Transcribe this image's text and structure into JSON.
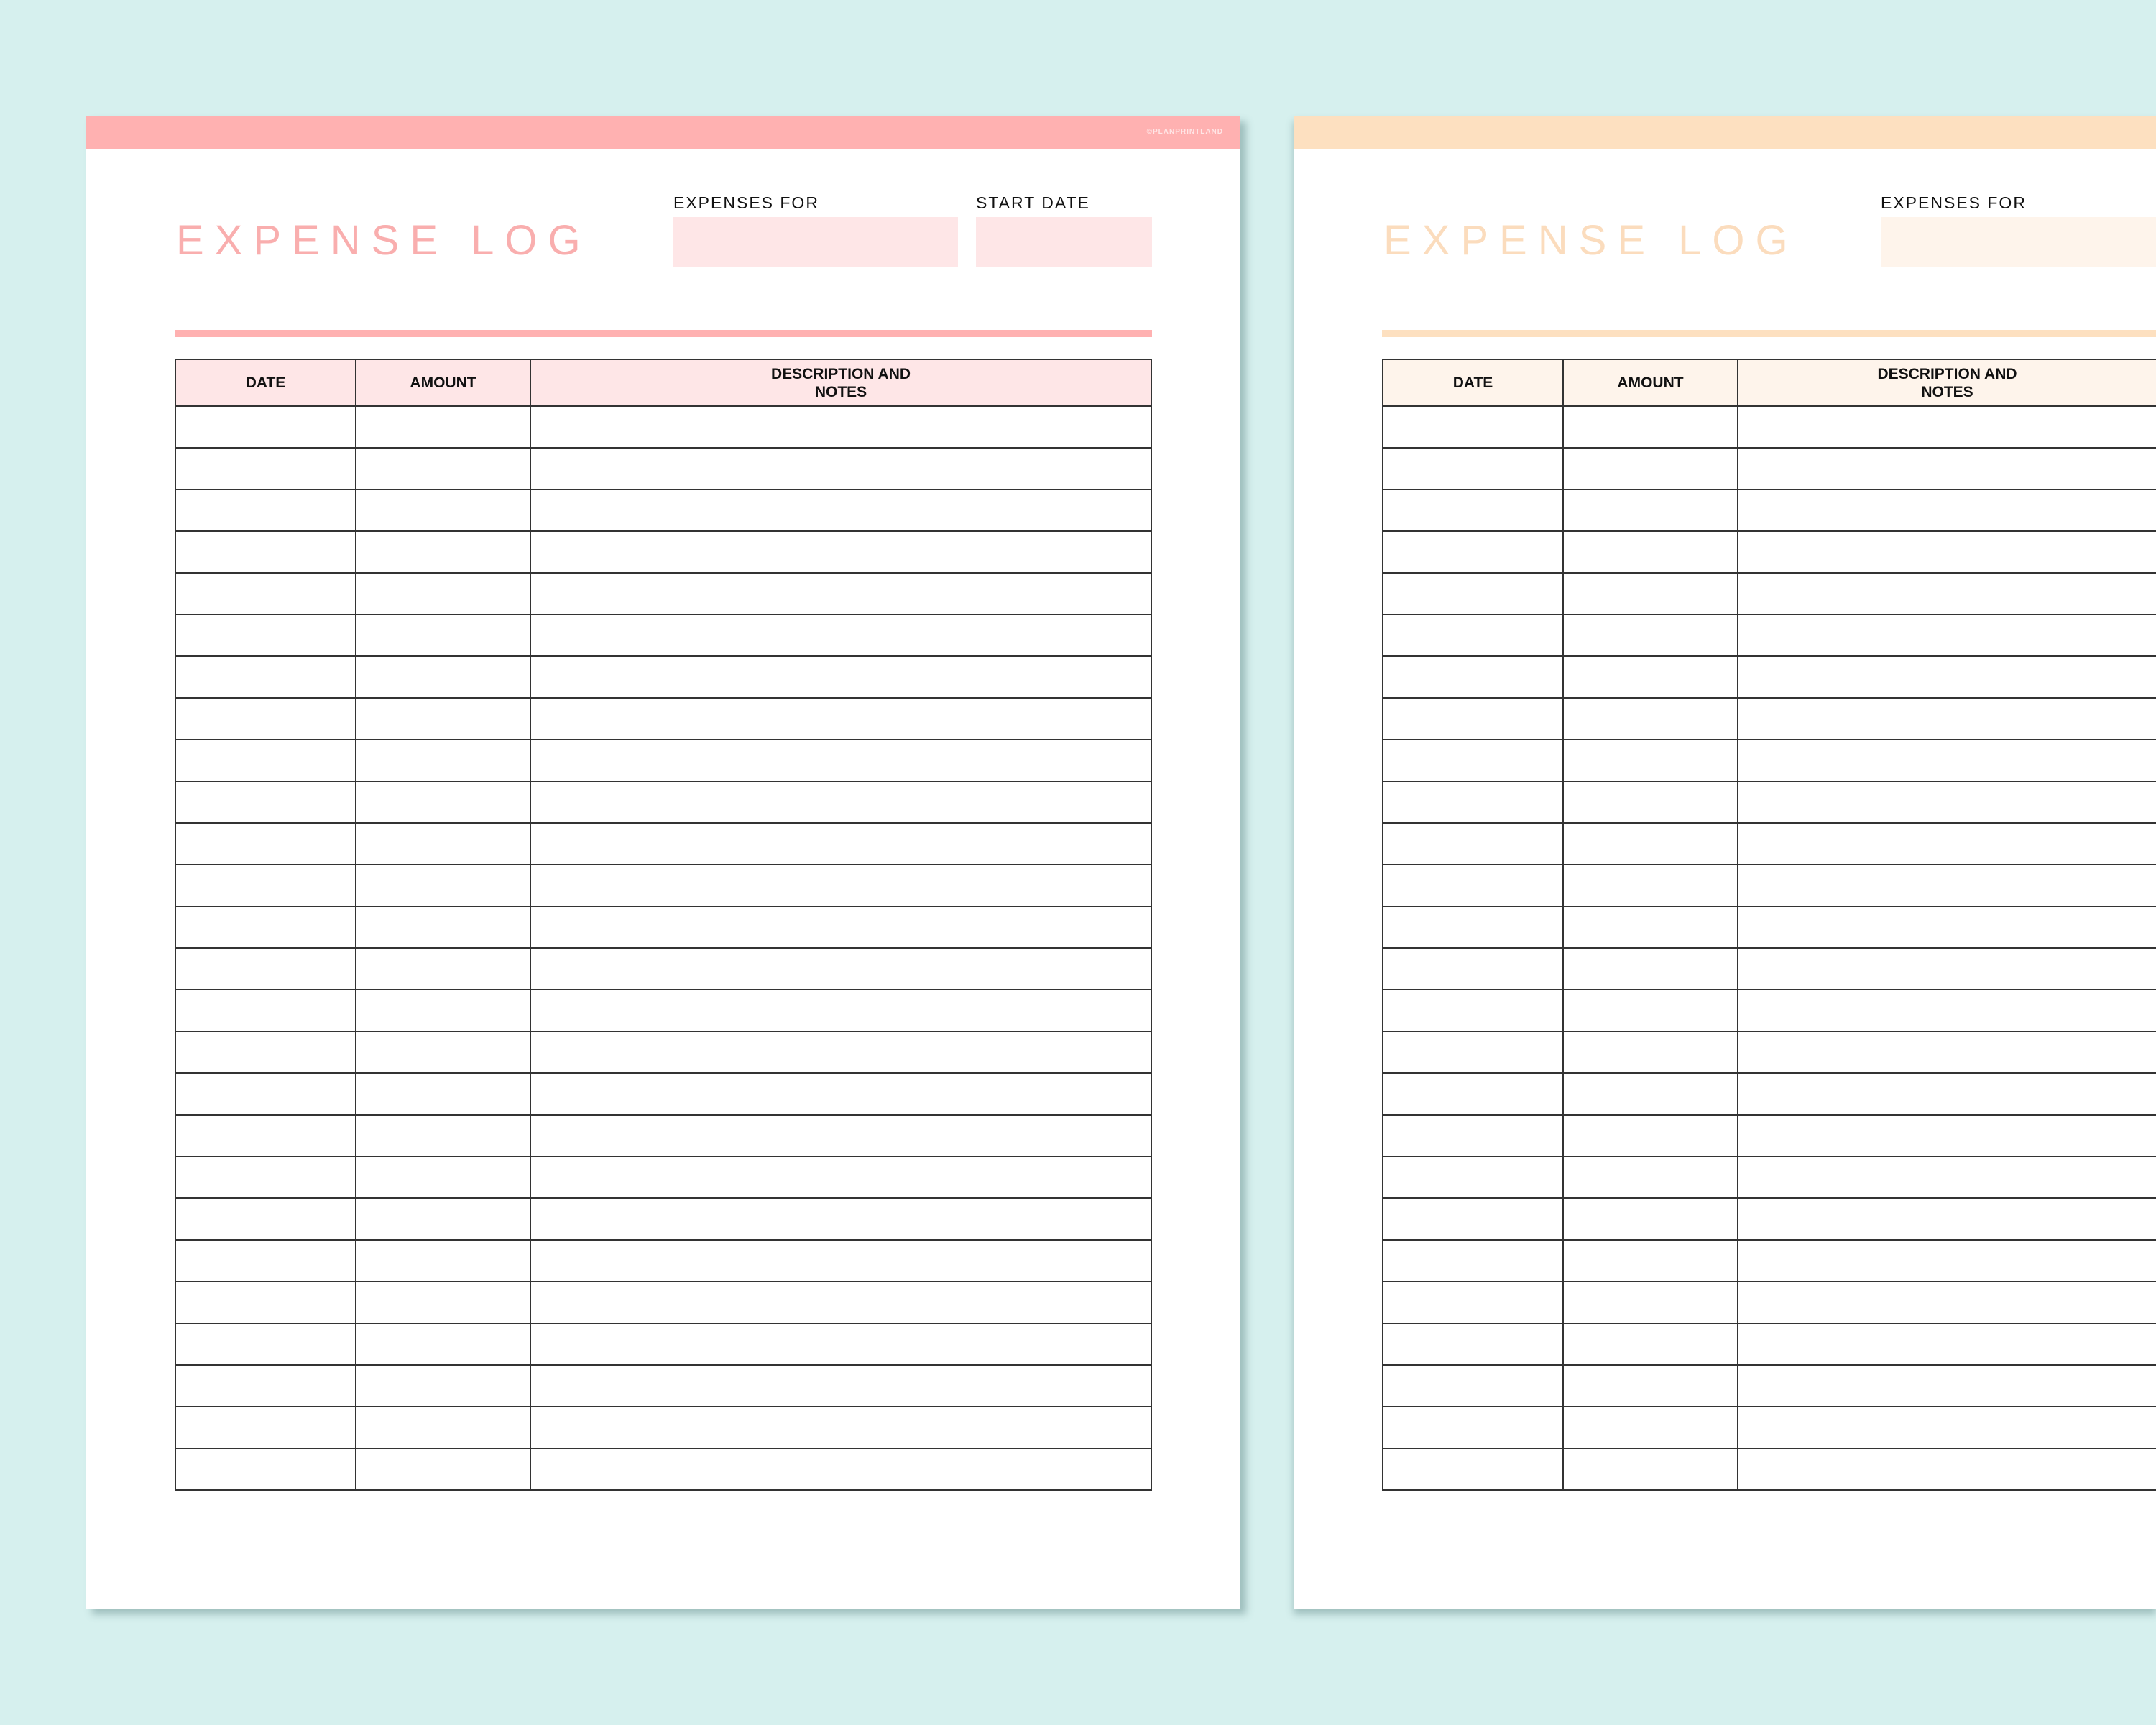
{
  "pages": [
    {
      "watermark": "©PLANPRINTLAND",
      "title": "EXPENSE LOG",
      "fields": {
        "expenses_for": "EXPENSES FOR",
        "start_date": "START DATE"
      },
      "columns": [
        "DATE",
        "AMOUNT",
        "DESCRIPTION AND NOTES"
      ],
      "colors": {
        "accent": "#ffb1b1",
        "light": "#fee6e7",
        "title": "#f9aeae"
      }
    },
    {
      "title": "EXPENSE LOG",
      "fields": {
        "expenses_for": "EXPENSES FOR"
      },
      "columns": [
        "DATE",
        "AMOUNT",
        "DESCRIPTION AND NOTES"
      ],
      "colors": {
        "accent": "#fde0c0",
        "light": "#fef4eb",
        "title": "#fbdcbd"
      }
    }
  ]
}
